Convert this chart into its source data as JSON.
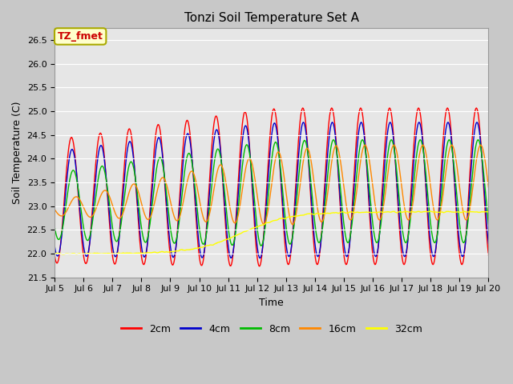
{
  "title": "Tonzi Soil Temperature Set A",
  "xlabel": "Time",
  "ylabel": "Soil Temperature (C)",
  "ylim": [
    21.5,
    26.75
  ],
  "xlim_days": [
    5,
    20
  ],
  "plot_bg_color": "#e6e6e6",
  "fig_bg_color": "#c8c8c8",
  "annotation_label": "TZ_fmet",
  "annotation_bg": "#ffffcc",
  "annotation_border": "#aaaa00",
  "annotation_text_color": "#cc0000",
  "legend_entries": [
    "2cm",
    "4cm",
    "8cm",
    "16cm",
    "32cm"
  ],
  "line_colors": [
    "#ff0000",
    "#0000cc",
    "#00bb00",
    "#ff8800",
    "#ffff00"
  ],
  "grid_color": "#ffffff",
  "tick_labels": [
    "Jul 5",
    "Jul 6",
    "Jul 7",
    "Jul 8",
    "Jul 9",
    "Jul 10",
    "Jul 11",
    "Jul 12",
    "Jul 13",
    "Jul 14",
    "Jul 15",
    "Jul 16",
    "Jul 17",
    "Jul 18",
    "Jul 19",
    "Jul 20"
  ],
  "tick_positions": [
    5,
    6,
    7,
    8,
    9,
    10,
    11,
    12,
    13,
    14,
    15,
    16,
    17,
    18,
    19,
    20
  ]
}
